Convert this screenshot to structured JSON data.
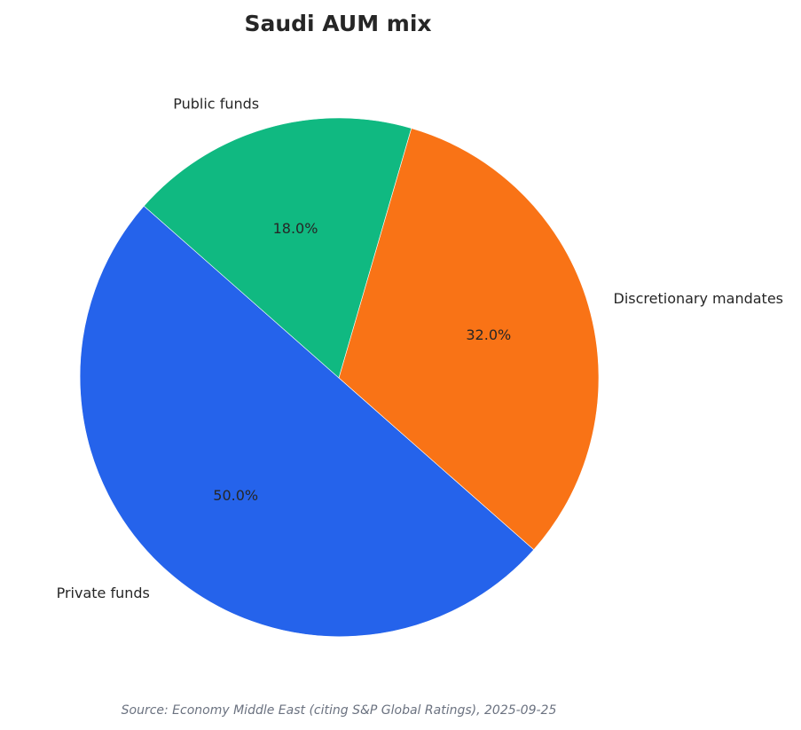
{
  "chart_data": {
    "type": "pie",
    "title": "Saudi AUM mix",
    "slices": [
      {
        "label": "Private funds",
        "value": 50.0,
        "pct_label": "50.0%",
        "color": "#2563eb"
      },
      {
        "label": "Discretionary mandates",
        "value": 32.0,
        "pct_label": "32.0%",
        "color": "#f97316"
      },
      {
        "label": "Public funds",
        "value": 18.0,
        "pct_label": "18.0%",
        "color": "#10b981"
      }
    ],
    "source": "Source: Economy Middle East (citing S&P Global Ratings), 2025-09-25"
  }
}
